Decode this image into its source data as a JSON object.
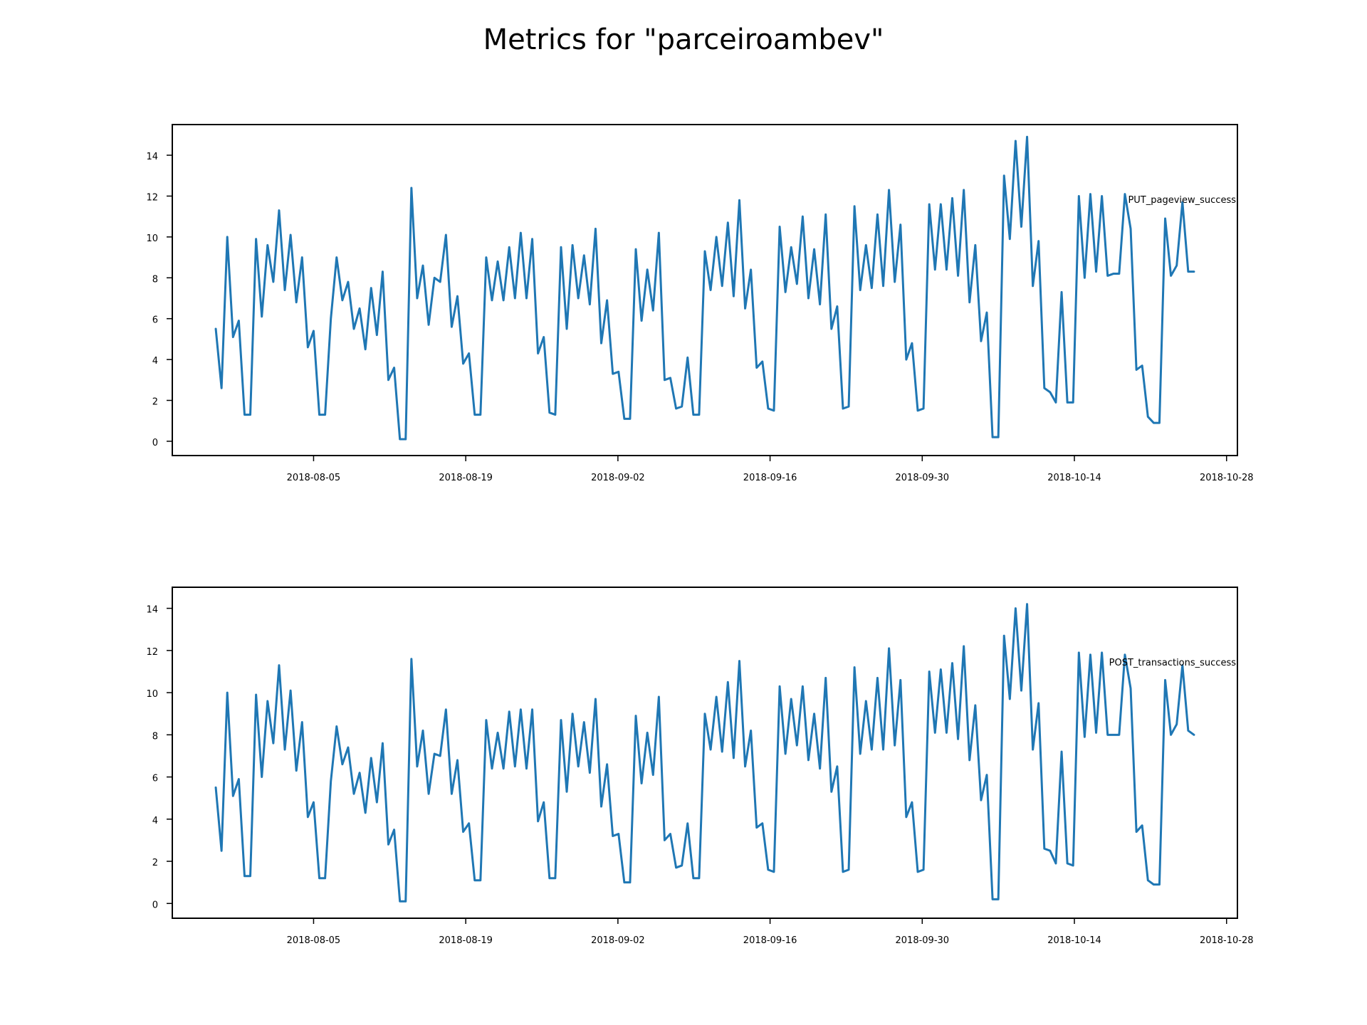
{
  "figure": {
    "title": "Metrics for \"parceiroambev\""
  },
  "chart_data": [
    {
      "type": "line",
      "title": "",
      "annotation": "PUT_pageview_success",
      "xlabel": "",
      "ylabel": "",
      "x_type": "date",
      "x_start": "2018-07-27",
      "x_end": "2018-10-25",
      "xlim": [
        "2018-07-23",
        "2018-10-29"
      ],
      "ylim": [
        -0.7,
        15.5
      ],
      "x_ticks": [
        "2018-08-05",
        "2018-08-19",
        "2018-09-02",
        "2018-09-16",
        "2018-09-30",
        "2018-10-14",
        "2018-10-28"
      ],
      "y_ticks": [
        0,
        2,
        4,
        6,
        8,
        10,
        12,
        14
      ],
      "color": "#1f77b4",
      "grid": false,
      "values": [
        5.5,
        2.6,
        10.0,
        5.1,
        5.9,
        1.3,
        1.3,
        9.9,
        6.1,
        9.6,
        7.8,
        11.3,
        7.4,
        10.1,
        6.8,
        9.0,
        4.6,
        5.4,
        1.3,
        1.3,
        6.0,
        9.0,
        6.9,
        7.8,
        5.5,
        6.5,
        4.5,
        7.5,
        5.2,
        8.3,
        3.0,
        3.6,
        0.1,
        0.1,
        12.4,
        7.0,
        8.6,
        5.7,
        8.0,
        7.8,
        10.1,
        5.6,
        7.1,
        3.8,
        4.3,
        1.3,
        1.3,
        9.0,
        6.9,
        8.8,
        6.9,
        9.5,
        7.0,
        10.2,
        7.0,
        9.9,
        4.3,
        5.1,
        1.4,
        1.3,
        9.5,
        5.5,
        9.6,
        7.0,
        9.1,
        6.7,
        10.4,
        4.8,
        6.9,
        3.3,
        3.4,
        1.1,
        1.1,
        9.4,
        5.9,
        8.4,
        6.4,
        10.2,
        3.0,
        3.1,
        1.6,
        1.7,
        4.1,
        1.3,
        1.3,
        9.3,
        7.4,
        10.0,
        7.6,
        10.7,
        7.1,
        11.8,
        6.5,
        8.4,
        3.6,
        3.9,
        1.6,
        1.5,
        10.5,
        7.3,
        9.5,
        7.7,
        11.0,
        7.0,
        9.4,
        6.7,
        11.1,
        5.5,
        6.6,
        1.6,
        1.7,
        11.5,
        7.4,
        9.6,
        7.5,
        11.1,
        7.6,
        12.3,
        7.8,
        10.6,
        4.0,
        4.8,
        1.5,
        1.6,
        11.6,
        8.4,
        11.6,
        8.4,
        11.9,
        8.1,
        12.3,
        6.8,
        9.6,
        4.9,
        6.3,
        0.2,
        0.2,
        13.0,
        9.9,
        14.7,
        10.5,
        14.9,
        7.6,
        9.8,
        2.6,
        2.4,
        1.9,
        7.3,
        1.9,
        1.9,
        12.0,
        8.0,
        12.1,
        8.3,
        12.0,
        8.1,
        8.2,
        8.2,
        12.1,
        10.4,
        3.5,
        3.7,
        1.2,
        0.9,
        0.9,
        10.9,
        8.1,
        8.6,
        11.7,
        8.3,
        8.3
      ]
    },
    {
      "type": "line",
      "title": "",
      "annotation": "POST_transactions_success",
      "xlabel": "",
      "ylabel": "",
      "x_type": "date",
      "x_start": "2018-07-27",
      "x_end": "2018-10-25",
      "xlim": [
        "2018-07-23",
        "2018-10-29"
      ],
      "ylim": [
        -0.7,
        15.0
      ],
      "x_ticks": [
        "2018-08-05",
        "2018-08-19",
        "2018-09-02",
        "2018-09-16",
        "2018-09-30",
        "2018-10-14",
        "2018-10-28"
      ],
      "y_ticks": [
        0,
        2,
        4,
        6,
        8,
        10,
        12,
        14
      ],
      "color": "#1f77b4",
      "grid": false,
      "values": [
        5.5,
        2.5,
        10.0,
        5.1,
        5.9,
        1.3,
        1.3,
        9.9,
        6.0,
        9.6,
        7.6,
        11.3,
        7.3,
        10.1,
        6.3,
        8.6,
        4.1,
        4.8,
        1.2,
        1.2,
        5.8,
        8.4,
        6.6,
        7.4,
        5.2,
        6.2,
        4.3,
        6.9,
        4.8,
        7.6,
        2.8,
        3.5,
        0.1,
        0.1,
        11.6,
        6.5,
        8.2,
        5.2,
        7.1,
        7.0,
        9.2,
        5.2,
        6.8,
        3.4,
        3.8,
        1.1,
        1.1,
        8.7,
        6.4,
        8.1,
        6.4,
        9.1,
        6.5,
        9.2,
        6.4,
        9.2,
        3.9,
        4.8,
        1.2,
        1.2,
        8.7,
        5.3,
        9.0,
        6.5,
        8.6,
        6.2,
        9.7,
        4.6,
        6.6,
        3.2,
        3.3,
        1.0,
        1.0,
        8.9,
        5.7,
        8.1,
        6.1,
        9.8,
        3.0,
        3.3,
        1.7,
        1.8,
        3.8,
        1.2,
        1.2,
        9.0,
        7.3,
        9.8,
        7.2,
        10.5,
        6.9,
        11.5,
        6.5,
        8.2,
        3.6,
        3.8,
        1.6,
        1.5,
        10.3,
        7.1,
        9.7,
        7.5,
        10.3,
        6.8,
        9.0,
        6.4,
        10.7,
        5.3,
        6.5,
        1.5,
        1.6,
        11.2,
        7.1,
        9.6,
        7.3,
        10.7,
        7.3,
        12.1,
        7.5,
        10.6,
        4.1,
        4.8,
        1.5,
        1.6,
        11.0,
        8.1,
        11.1,
        8.1,
        11.4,
        7.8,
        12.2,
        6.8,
        9.4,
        4.9,
        6.1,
        0.2,
        0.2,
        12.7,
        9.7,
        14.0,
        10.1,
        14.2,
        7.3,
        9.5,
        2.6,
        2.5,
        1.9,
        7.2,
        1.9,
        1.8,
        11.9,
        7.9,
        11.8,
        8.1,
        11.9,
        8.0,
        8.0,
        8.0,
        11.8,
        10.2,
        3.4,
        3.7,
        1.1,
        0.9,
        0.9,
        10.6,
        8.0,
        8.5,
        11.3,
        8.2,
        8.0
      ]
    }
  ]
}
